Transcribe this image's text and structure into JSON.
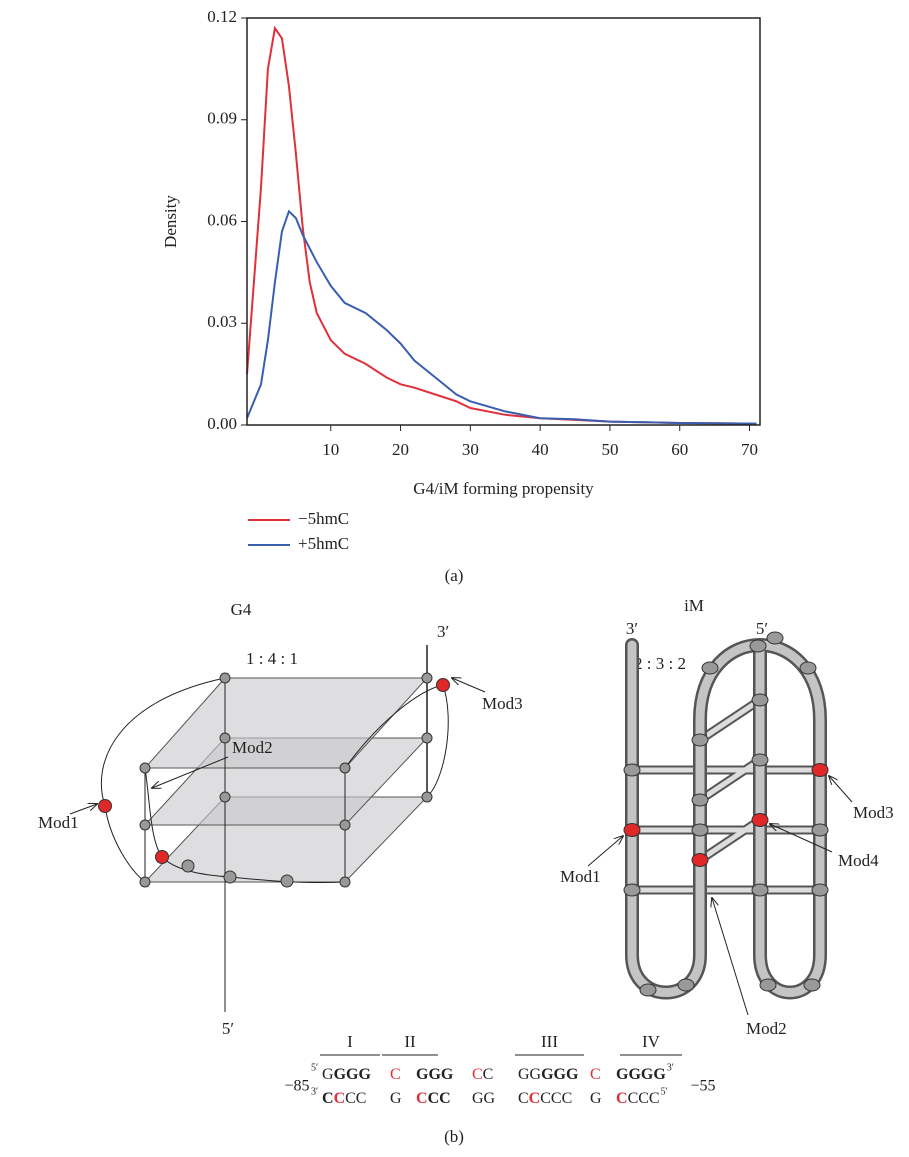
{
  "chart_data": {
    "type": "line",
    "xlabel": "G4/iM forming propensity",
    "ylabel": "Density",
    "x": [
      -2,
      0,
      1,
      2,
      3,
      4,
      5,
      6,
      7,
      8,
      10,
      12,
      15,
      18,
      20,
      22,
      25,
      28,
      30,
      35,
      40,
      45,
      50,
      55,
      60,
      65,
      71
    ],
    "series": [
      {
        "name": "−5hmC",
        "color": "#e0303a",
        "values": [
          0.015,
          0.07,
          0.105,
          0.117,
          0.114,
          0.1,
          0.08,
          0.058,
          0.042,
          0.033,
          0.025,
          0.021,
          0.018,
          0.014,
          0.012,
          0.011,
          0.009,
          0.007,
          0.005,
          0.003,
          0.002,
          0.0015,
          0.001,
          0.0008,
          0.0006,
          0.0005,
          0.0004
        ]
      },
      {
        "name": "+5hmC",
        "color": "#3a5fb0",
        "values": [
          0.002,
          0.012,
          0.025,
          0.042,
          0.057,
          0.063,
          0.061,
          0.056,
          0.052,
          0.048,
          0.041,
          0.036,
          0.033,
          0.028,
          0.024,
          0.019,
          0.014,
          0.009,
          0.007,
          0.004,
          0.002,
          0.0017,
          0.001,
          0.0008,
          0.0006,
          0.0005,
          0.0004
        ]
      }
    ],
    "xlim": [
      -2,
      71.5
    ],
    "xticks": [
      10,
      20,
      30,
      40,
      50,
      60,
      70
    ],
    "ylim": [
      0,
      0.12
    ],
    "yticks": [
      {
        "value": 0,
        "label": "0.00"
      },
      0.03,
      0.06,
      0.09,
      0.12
    ],
    "legend": "below"
  },
  "panel_a": "(a)",
  "panel_b": "(b)",
  "g4": {
    "title": "G4",
    "ratio": "1 : 4 : 1",
    "three_prime": "3′",
    "five_prime": "5′",
    "mod1": "Mod1",
    "mod2": "Mod2",
    "mod3": "Mod3"
  },
  "im": {
    "title": "iM",
    "ratio": "2 : 3 : 2",
    "three_prime": "3′",
    "five_prime": "5′",
    "mod1": "Mod1",
    "mod2": "Mod2",
    "mod3": "Mod3",
    "mod4": "Mod4"
  },
  "sequence": {
    "start": "−85",
    "end": "−55",
    "domains": [
      "I",
      "II",
      "III",
      "IV"
    ],
    "rows": [
      {
        "left": "5′",
        "right": "3′",
        "words": [
          [
            {
              "text": "G",
              "style": "plain"
            },
            {
              "text": "GGG",
              "style": "bold"
            }
          ],
          [
            {
              "text": "C",
              "style": "red"
            }
          ],
          [
            {
              "text": "GGG",
              "style": "bold"
            }
          ],
          [
            {
              "text": "C",
              "style": "red"
            },
            {
              "text": "C",
              "style": "plain"
            }
          ],
          [
            {
              "text": "GG",
              "style": "plain"
            },
            {
              "text": "GGG",
              "style": "bold"
            }
          ],
          [
            {
              "text": "C",
              "style": "red"
            }
          ],
          [
            {
              "text": "GGGG",
              "style": "bold"
            }
          ]
        ]
      },
      {
        "left": "3′",
        "right": "5′",
        "words": [
          [
            {
              "text": "C",
              "style": "bold"
            },
            {
              "text": "C",
              "style": "red-bold"
            },
            {
              "text": "CC",
              "style": "plain"
            }
          ],
          [
            {
              "text": "G",
              "style": "plain"
            }
          ],
          [
            {
              "text": "C",
              "style": "red-bold"
            },
            {
              "text": "CC",
              "style": "bold"
            }
          ],
          [
            {
              "text": "GG",
              "style": "plain"
            }
          ],
          [
            {
              "text": "C",
              "style": "plain"
            },
            {
              "text": "C",
              "style": "red-bold"
            },
            {
              "text": "CCC",
              "style": "plain"
            }
          ],
          [
            {
              "text": "G",
              "style": "plain"
            }
          ],
          [
            {
              "text": "C",
              "style": "red-bold"
            },
            {
              "text": "CCC",
              "style": "plain"
            }
          ]
        ]
      }
    ]
  }
}
